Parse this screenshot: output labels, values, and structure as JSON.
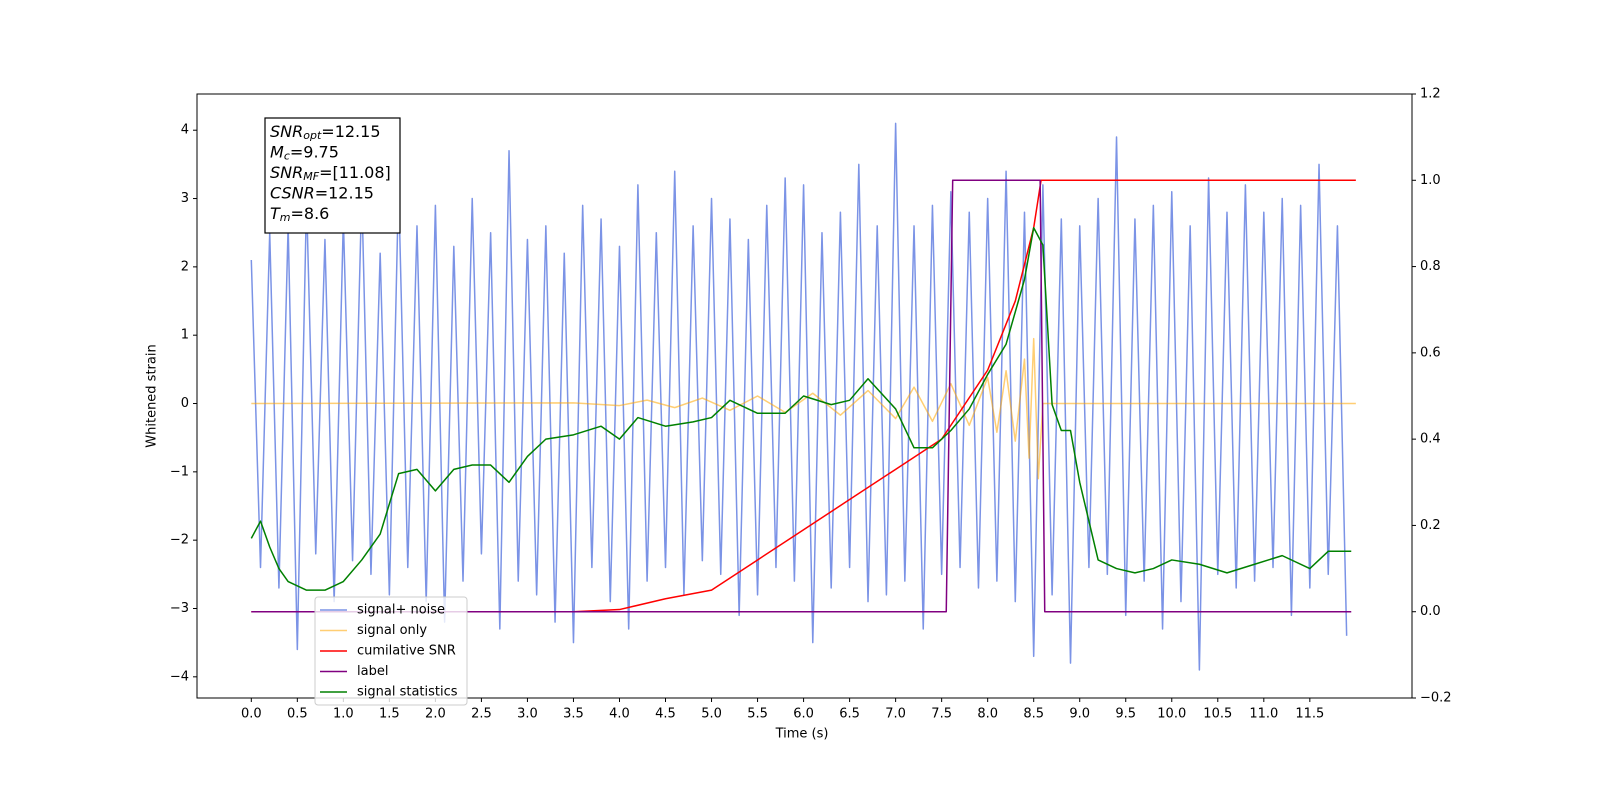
{
  "chart_data": {
    "type": "line",
    "xlabel": "Time (s)",
    "ylabel": "Whitened strain",
    "xlim": [
      -0.59,
      12.61
    ],
    "ylim": [
      -4.31,
      4.53
    ],
    "y2lim": [
      -0.2,
      1.2
    ],
    "xticks": [
      {
        "value": 0,
        "label": "0.0"
      },
      0.5,
      {
        "value": 1,
        "label": "1.0"
      },
      1.5,
      {
        "value": 2,
        "label": "2.0"
      },
      2.5,
      {
        "value": 3,
        "label": "3.0"
      },
      3.5,
      {
        "value": 4,
        "label": "4.0"
      },
      4.5,
      {
        "value": 5,
        "label": "5.0"
      },
      5.5,
      {
        "value": 6,
        "label": "6.0"
      },
      6.5,
      {
        "value": 7,
        "label": "7.0"
      },
      7.5,
      {
        "value": 8,
        "label": "8.0"
      },
      8.5,
      {
        "value": 9,
        "label": "9.0"
      },
      9.5,
      {
        "value": 10,
        "label": "10.0"
      },
      10.5,
      {
        "value": 11,
        "label": "11.0"
      },
      11.5
    ],
    "yticks": [
      {
        "value": -4,
        "label": "−4"
      },
      {
        "value": -3,
        "label": "−3"
      },
      {
        "value": -2,
        "label": "−2"
      },
      {
        "value": -1,
        "label": "−1"
      },
      0,
      1,
      2,
      3,
      4
    ],
    "y2ticks": [
      {
        "value": -0.2,
        "label": "−0.2"
      },
      {
        "value": 0,
        "label": "0.0"
      },
      0.2,
      0.4,
      0.6,
      0.8,
      {
        "value": 1,
        "label": "1.0"
      },
      1.2
    ],
    "legend": "lower left",
    "series": [
      {
        "name": "signal+ noise",
        "color": "#7b93e6",
        "x": [
          0,
          0.1,
          0.2,
          0.3,
          0.4,
          0.5,
          0.6,
          0.7,
          0.8,
          0.9,
          1,
          1.1,
          1.2,
          1.3,
          1.4,
          1.5,
          1.6,
          1.7,
          1.8,
          1.9,
          2,
          2.1,
          2.2,
          2.3,
          2.4,
          2.5,
          2.6,
          2.7,
          2.8,
          2.9,
          3,
          3.1,
          3.2,
          3.3,
          3.4,
          3.5,
          3.6,
          3.7,
          3.8,
          3.9,
          4,
          4.1,
          4.2,
          4.3,
          4.4,
          4.5,
          4.6,
          4.7,
          4.8,
          4.9,
          5,
          5.1,
          5.2,
          5.3,
          5.4,
          5.5,
          5.6,
          5.7,
          5.8,
          5.9,
          6,
          6.1,
          6.2,
          6.3,
          6.4,
          6.5,
          6.6,
          6.7,
          6.8,
          6.9,
          7,
          7.1,
          7.2,
          7.3,
          7.4,
          7.5,
          7.6,
          7.7,
          7.8,
          7.9,
          8,
          8.1,
          8.2,
          8.3,
          8.4,
          8.5,
          8.6,
          8.7,
          8.8,
          8.9,
          9,
          9.1,
          9.2,
          9.3,
          9.4,
          9.5,
          9.6,
          9.7,
          9.8,
          9.9,
          10,
          10.1,
          10.2,
          10.3,
          10.4,
          10.5,
          10.6,
          10.7,
          10.8,
          10.9,
          11,
          11.1,
          11.2,
          11.3,
          11.4,
          11.5,
          11.6,
          11.7,
          11.8,
          11.9
        ],
        "values": [
          2.1,
          -2.4,
          2.5,
          -2.7,
          2.6,
          -3.6,
          3.0,
          -2.2,
          2.4,
          -2.9,
          2.7,
          -2.3,
          3.1,
          -2.5,
          2.2,
          -2.8,
          3.2,
          -2.4,
          2.6,
          -2.9,
          2.9,
          -3.2,
          2.3,
          -2.6,
          3.0,
          -2.2,
          2.5,
          -3.3,
          3.7,
          -2.6,
          2.4,
          -2.8,
          2.6,
          -3.2,
          2.2,
          -3.5,
          2.9,
          -2.4,
          2.7,
          -2.9,
          2.3,
          -3.3,
          3.2,
          -2.6,
          2.5,
          -2.4,
          3.4,
          -2.8,
          2.6,
          -2.3,
          3.0,
          -2.5,
          2.7,
          -3.1,
          2.4,
          -2.8,
          2.9,
          -2.4,
          3.3,
          -2.6,
          3.2,
          -3.5,
          2.5,
          -2.7,
          2.8,
          -2.4,
          3.5,
          -2.9,
          2.6,
          -2.8,
          4.1,
          -2.6,
          2.6,
          -3.3,
          2.9,
          -2.5,
          3.1,
          -2.4,
          2.8,
          -2.7,
          3.0,
          -2.6,
          3.4,
          -2.9,
          2.8,
          -3.7,
          3.2,
          -2.8,
          2.7,
          -3.8,
          2.6,
          -2.4,
          3.0,
          -2.5,
          3.9,
          -3.1,
          2.7,
          -2.6,
          2.9,
          -3.3,
          3.1,
          -2.9,
          2.6,
          -3.9,
          3.3,
          -2.5,
          2.8,
          -2.7,
          3.2,
          -2.6,
          2.8,
          -2.4,
          3.0,
          -3.1,
          2.9,
          -2.7,
          3.5,
          -2.5,
          2.6,
          -3.4
        ]
      },
      {
        "name": "signal only",
        "color": "#ffa500",
        "x": [
          0,
          3.5,
          4.0,
          4.3,
          4.6,
          4.9,
          5.2,
          5.5,
          5.8,
          6.1,
          6.4,
          6.7,
          7.0,
          7.2,
          7.4,
          7.6,
          7.8,
          8.0,
          8.1,
          8.2,
          8.3,
          8.4,
          8.45,
          8.5,
          8.55,
          8.6,
          12.0
        ],
        "values": [
          0,
          0.01,
          -0.03,
          0.05,
          -0.06,
          0.08,
          -0.1,
          0.11,
          -0.13,
          0.15,
          -0.17,
          0.19,
          -0.22,
          0.24,
          -0.26,
          0.29,
          -0.32,
          0.38,
          -0.42,
          0.48,
          -0.55,
          0.65,
          -0.8,
          0.95,
          -1.1,
          0,
          0
        ]
      },
      {
        "name": "cumilative SNR",
        "color": "#ff0000",
        "axis": "y2",
        "x": [
          0,
          3.5,
          4.0,
          4.5,
          5.0,
          5.5,
          6.0,
          6.5,
          7.0,
          7.5,
          8.0,
          8.3,
          8.5,
          8.58,
          12.0
        ],
        "values": [
          0,
          0,
          0.005,
          0.03,
          0.05,
          0.12,
          0.19,
          0.26,
          0.33,
          0.4,
          0.56,
          0.72,
          0.89,
          1.0,
          1.0
        ]
      },
      {
        "name": "label",
        "color": "#800080",
        "axis": "y2",
        "x": [
          0,
          7.55,
          7.62,
          8.57,
          8.62,
          11.95
        ],
        "values": [
          0,
          0,
          1,
          1,
          0,
          0
        ]
      },
      {
        "name": "signal statistics",
        "color": "#008000",
        "axis": "y2",
        "x": [
          0,
          0.1,
          0.2,
          0.3,
          0.4,
          0.6,
          0.8,
          1.0,
          1.2,
          1.4,
          1.6,
          1.8,
          2.0,
          2.2,
          2.4,
          2.6,
          2.8,
          3.0,
          3.2,
          3.5,
          3.8,
          4.0,
          4.2,
          4.5,
          4.8,
          5.0,
          5.2,
          5.5,
          5.8,
          6.0,
          6.3,
          6.5,
          6.7,
          7.0,
          7.2,
          7.4,
          7.6,
          7.8,
          8.0,
          8.2,
          8.4,
          8.5,
          8.6,
          8.7,
          8.8,
          8.9,
          9.0,
          9.2,
          9.4,
          9.6,
          9.8,
          10.0,
          10.3,
          10.6,
          10.9,
          11.2,
          11.5,
          11.7,
          11.95
        ],
        "values": [
          0.17,
          0.21,
          0.15,
          0.1,
          0.07,
          0.05,
          0.05,
          0.07,
          0.12,
          0.18,
          0.32,
          0.33,
          0.28,
          0.33,
          0.34,
          0.34,
          0.3,
          0.36,
          0.4,
          0.41,
          0.43,
          0.4,
          0.45,
          0.43,
          0.44,
          0.45,
          0.49,
          0.46,
          0.46,
          0.5,
          0.48,
          0.49,
          0.54,
          0.47,
          0.38,
          0.38,
          0.42,
          0.47,
          0.55,
          0.62,
          0.77,
          0.89,
          0.85,
          0.48,
          0.42,
          0.42,
          0.3,
          0.12,
          0.1,
          0.09,
          0.1,
          0.12,
          0.11,
          0.09,
          0.11,
          0.13,
          0.1,
          0.14,
          0.14
        ]
      }
    ],
    "annotation_box": [
      {
        "name": "SNR",
        "sub": "opt",
        "text": "=12.15"
      },
      {
        "name": "M",
        "sub": "c",
        "text": "=9.75"
      },
      {
        "name": "SNR",
        "sub": "MF",
        "text": "=[11.08]"
      },
      {
        "name": "CSNR",
        "text": "=12.15"
      },
      {
        "name": "T",
        "sub": "m",
        "text": "=8.6"
      }
    ]
  }
}
